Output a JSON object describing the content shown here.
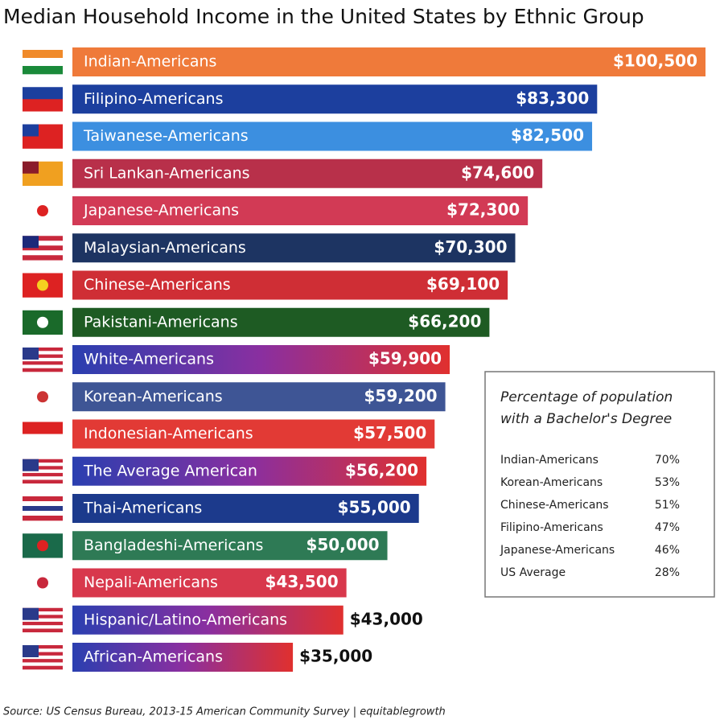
{
  "chart_data": {
    "type": "bar",
    "orientation": "horizontal",
    "title": "Median Household Income in the United States  by Ethnic Group",
    "categories": [
      "Indian-Americans",
      "Filipino-Americans",
      "Taiwanese-Americans",
      "Sri Lankan-Americans",
      "Japanese-Americans",
      "Malaysian-Americans",
      "Chinese-Americans",
      "Pakistani-Americans",
      "White-Americans",
      "Korean-Americans",
      "Indonesian-Americans",
      "The Average American",
      "Thai-Americans",
      "Bangladeshi-Americans",
      "Nepali-Americans",
      "Hispanic/Latino-Americans",
      "African-Americans"
    ],
    "values": [
      100500,
      83300,
      82500,
      74600,
      72300,
      70300,
      69100,
      66200,
      59900,
      59200,
      57500,
      56200,
      55000,
      50000,
      43500,
      43000,
      35000
    ],
    "value_labels": [
      "$100,500",
      "$83,300",
      "$82,500",
      "$74,600",
      "$72,300",
      "$70,300",
      "$69,100",
      "$66,200",
      "$59,900",
      "$59,200",
      "$57,500",
      "$56,200",
      "$55,000",
      "$50,000",
      "$43,500",
      "$43,000",
      "$35,000"
    ],
    "colors": [
      "#ef7a3a",
      "#1c3f9e",
      "#3c8fe0",
      "#b8304a",
      "#d23a55",
      "#1d3462",
      "#cf2e35",
      "#1e5b23",
      [
        "#2a3fb0",
        "#8a2fa0",
        "#e0302e"
      ],
      "#3e5595",
      "#e23a35",
      [
        "#2a3fb0",
        "#8a2fa0",
        "#e0302e"
      ],
      "#1c3a8c",
      "#2e7a55",
      "#d8384c",
      [
        "#2a3fb0",
        "#8a2fa0",
        "#e0302e"
      ],
      [
        "#2a3fb0",
        "#8a2fa0",
        "#e0302e"
      ]
    ]
  },
  "inset": {
    "title": [
      "Percentage of population",
      "with a Bachelor's Degree"
    ],
    "rows": [
      [
        "Indian-Americans",
        "70%"
      ],
      [
        "Korean-Americans",
        "53%"
      ],
      [
        "Chinese-Americans",
        "51%"
      ],
      [
        "Filipino-Americans",
        "47%"
      ],
      [
        "Japanese-Americans",
        "46%"
      ],
      [
        "US Average",
        "28%"
      ]
    ]
  },
  "source": "Source: US Census Bureau, 2013-15 American Community Survey | equitablegrowth"
}
